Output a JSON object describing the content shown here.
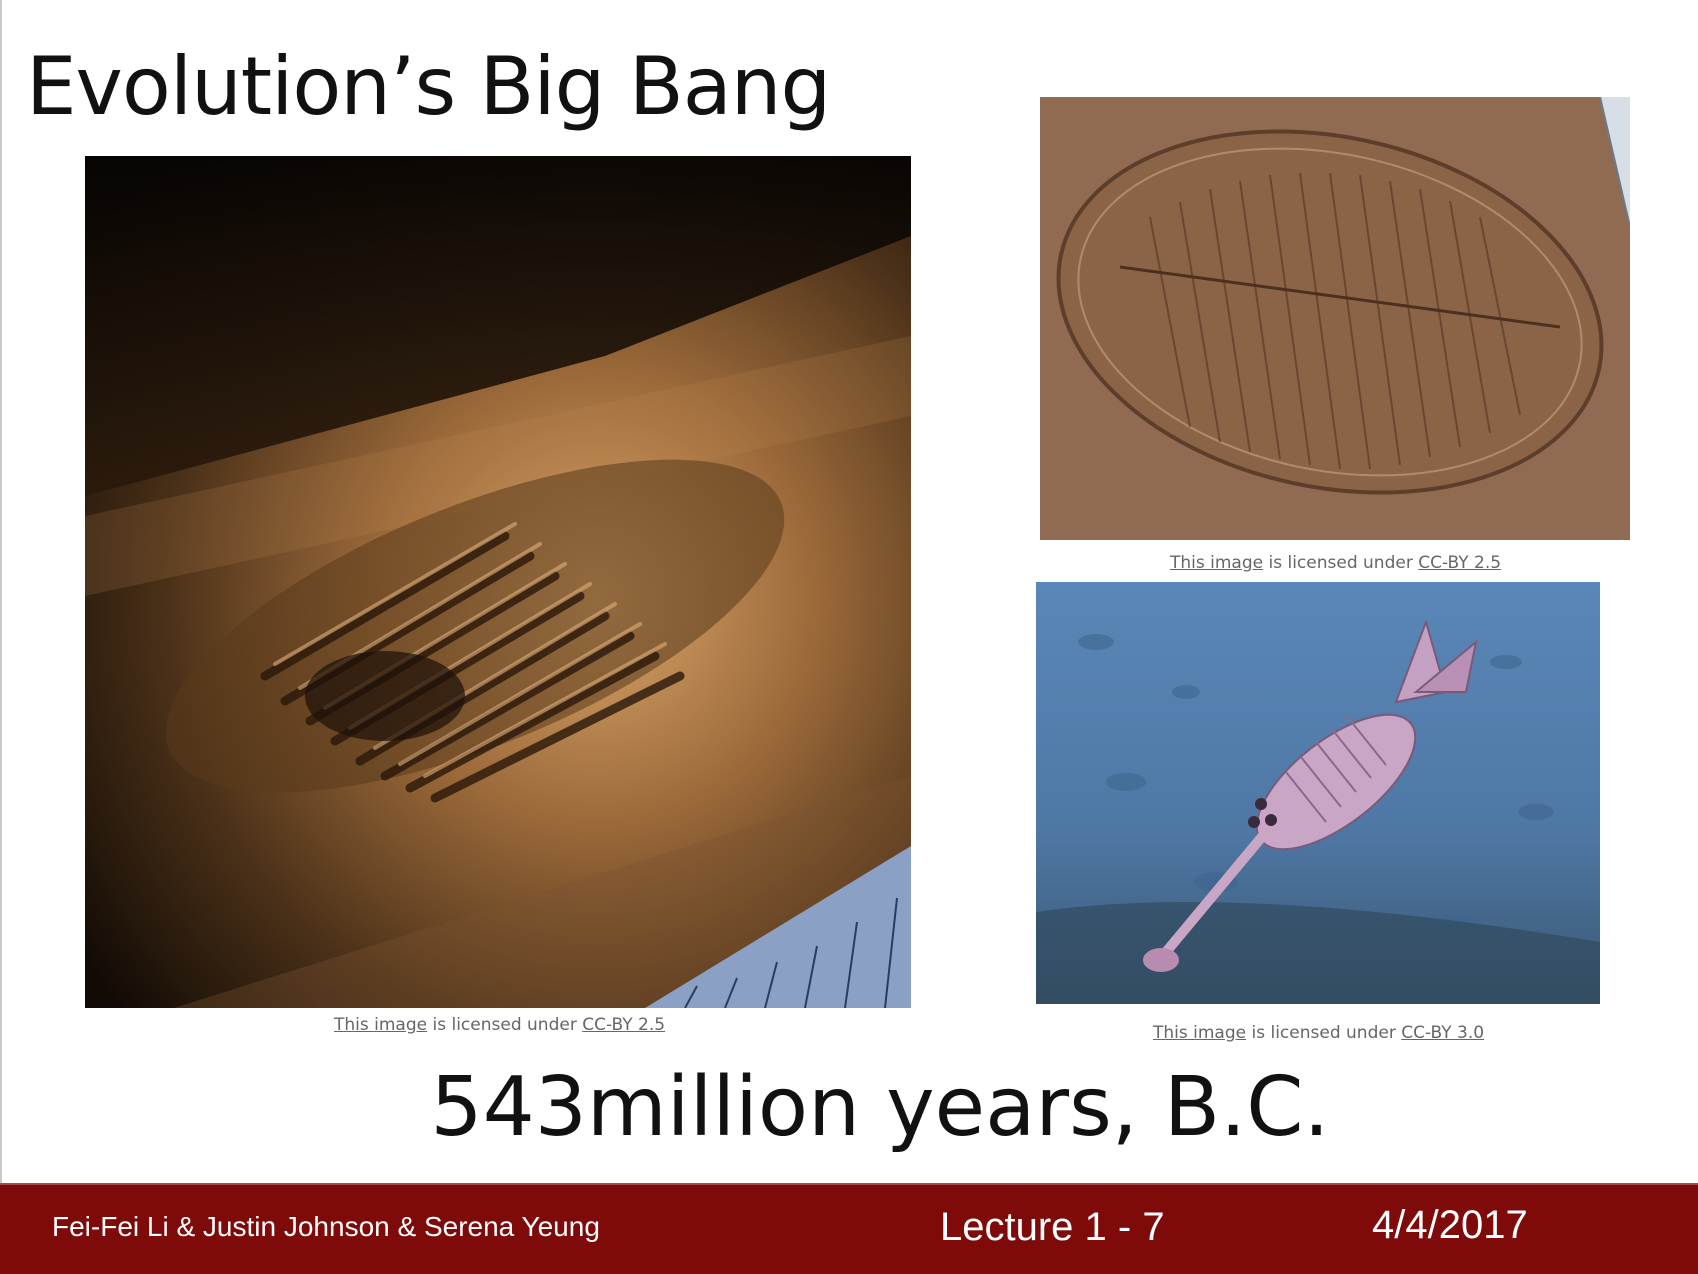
{
  "slide": {
    "title": "Evolution’s Big Bang",
    "subtitle": "543million years, B.C."
  },
  "images": {
    "fossil_main": {
      "credit_link": "This image",
      "credit_mid": " is licensed under ",
      "credit_license": "CC-BY 2.5"
    },
    "dickinsonia": {
      "credit_link": "This image",
      "credit_mid": " is licensed under ",
      "credit_license": "CC-BY 2.5"
    },
    "opabinia": {
      "credit_link": "This image",
      "credit_mid": " is licensed under ",
      "credit_license": "CC-BY 3.0"
    }
  },
  "footer": {
    "authors": "Fei-Fei Li & Justin Johnson & Serena Yeung",
    "lecture": "Lecture 1 -  7",
    "date": "4/4/2017"
  },
  "colors": {
    "footer_bg": "#7f0a0a",
    "credit_text": "#666666"
  }
}
